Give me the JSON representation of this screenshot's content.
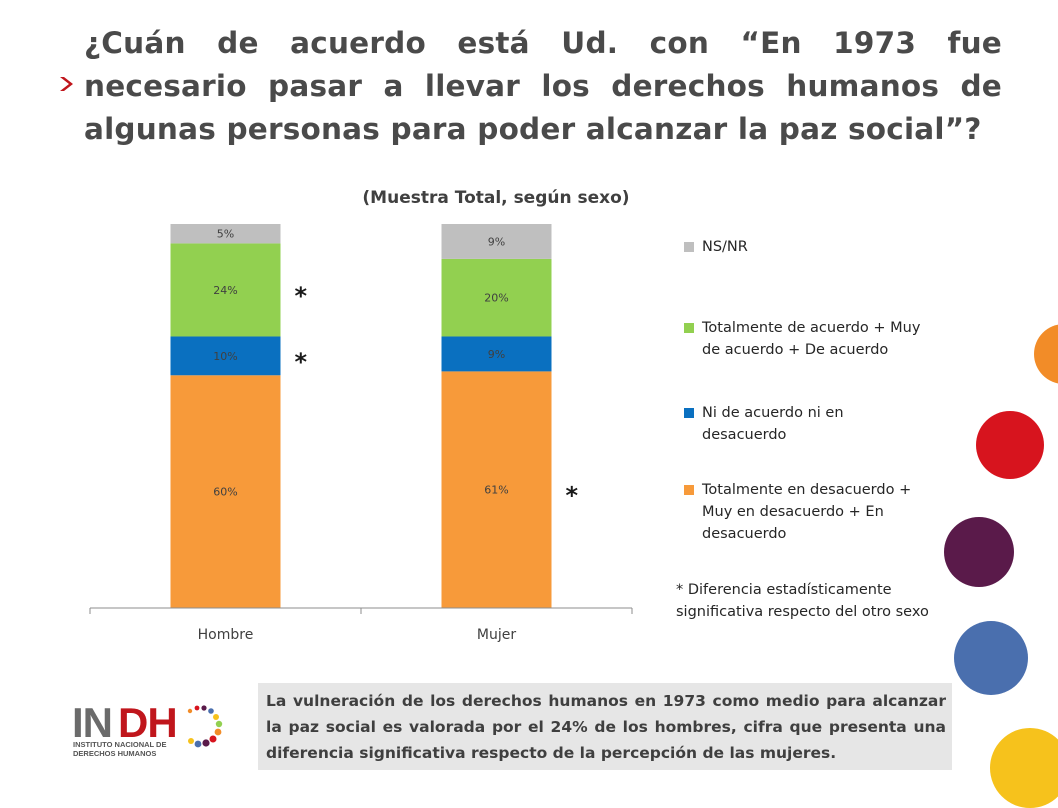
{
  "slide": {
    "title": "¿Cuán de acuerdo está Ud. con “En 1973 fue necesario pasar a llevar los derechos humanos de algunas personas para poder alcanzar la paz social”?",
    "footnote": "* Diferencia estadísticamente significativa respecto del otro sexo",
    "note": "La vulneración de los derechos humanos en 1973 como medio para alcanzar la paz social es valorada por el 24% de los hombres, cifra que presenta una diferencia significativa respecto de la percepción de las mujeres.",
    "logo": {
      "text": "INDH",
      "subtitle_line1": "INSTITUTO NACIONAL DE",
      "subtitle_line2": "DERECHOS HUMANOS"
    },
    "accent_color": "#c0161c"
  },
  "chart_data": {
    "type": "bar",
    "stacked": true,
    "title": "(Muestra Total, según sexo)",
    "categories": [
      "Hombre",
      "Mujer"
    ],
    "ylim": [
      0,
      100
    ],
    "legend_position": "right",
    "series": [
      {
        "name": "Totalmente en desacuerdo + Muy en desacuerdo + En desacuerdo",
        "values": [
          60,
          61
        ],
        "labels": [
          "60%",
          "61%"
        ],
        "color": "#f79a3a"
      },
      {
        "name": "Ni de acuerdo ni en desacuerdo",
        "values": [
          10,
          9
        ],
        "labels": [
          "10%",
          "9%"
        ],
        "color": "#0a70c0"
      },
      {
        "name": "Totalmente de acuerdo + Muy de acuerdo + De acuerdo",
        "values": [
          24,
          20
        ],
        "labels": [
          "24%",
          "20%"
        ],
        "color": "#92d050"
      },
      {
        "name": "NS/NR",
        "values": [
          5,
          9
        ],
        "labels": [
          "5%",
          "9%"
        ],
        "color": "#bfbfbf"
      }
    ],
    "significance_marks": [
      {
        "category": "Hombre",
        "series": "Totalmente de acuerdo + Muy de acuerdo + De acuerdo",
        "mark": "*"
      },
      {
        "category": "Hombre",
        "series": "Ni de acuerdo ni en desacuerdo",
        "mark": "*"
      },
      {
        "category": "Mujer",
        "series": "Totalmente en desacuerdo + Muy en desacuerdo + En desacuerdo",
        "mark": "*"
      }
    ]
  },
  "decor": {
    "circle_colors": [
      "#f28c28",
      "#d7141e",
      "#5a1a4a",
      "#4a6fae",
      "#f6c21c"
    ]
  }
}
